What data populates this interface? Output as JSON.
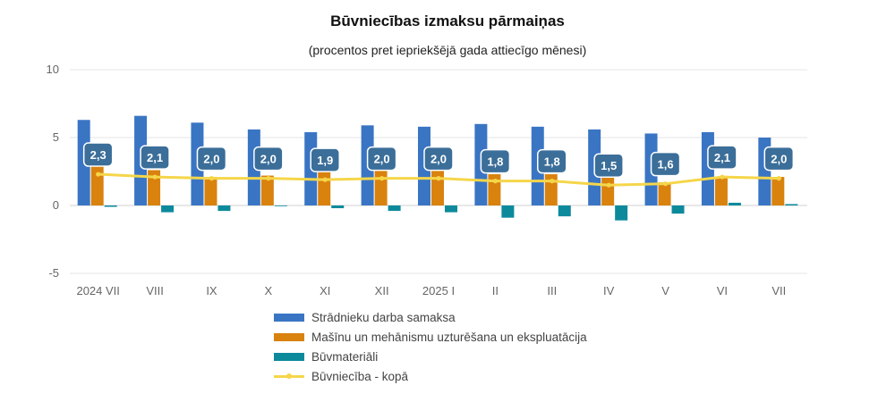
{
  "chart_data": {
    "type": "bar",
    "title": "Būvniecības izmaksu pārmaiņas",
    "subtitle": "(procentos pret iepriekšējā gada attiecīgo mēnesi)",
    "categories": [
      "2024 VII",
      "VIII",
      "IX",
      "X",
      "XI",
      "XII",
      "2025 I",
      "II",
      "III",
      "IV",
      "V",
      "VI",
      "VII"
    ],
    "ylim": [
      -5,
      10
    ],
    "yticks": [
      -5,
      0,
      5,
      10
    ],
    "grid": true,
    "legend_position": "bottom",
    "series": [
      {
        "name": "Strādnieku darba samaksa",
        "type": "bar",
        "color": "#3a75c4",
        "values": [
          6.3,
          6.6,
          6.1,
          5.6,
          5.4,
          5.9,
          5.8,
          6.0,
          5.8,
          5.6,
          5.3,
          5.4,
          5.0
        ]
      },
      {
        "name": "Mašīnu un mehānismu uzturēšana un ekspluatācija",
        "type": "bar",
        "color": "#d9820e",
        "values": [
          2.9,
          2.6,
          2.1,
          2.2,
          2.5,
          2.7,
          2.9,
          2.3,
          2.3,
          2.1,
          1.7,
          2.1,
          2.1
        ]
      },
      {
        "name": "Būvmateriāli",
        "type": "bar",
        "color": "#0c8a9c",
        "values": [
          -0.1,
          -0.5,
          -0.4,
          0.0,
          -0.2,
          -0.4,
          -0.5,
          -0.9,
          -0.8,
          -1.1,
          -0.6,
          0.2,
          0.1
        ]
      },
      {
        "name": "Būvniecība - kopā",
        "type": "line",
        "color": "#f5d64a",
        "values": [
          2.3,
          2.1,
          2.0,
          2.0,
          1.9,
          2.0,
          2.0,
          1.8,
          1.8,
          1.5,
          1.6,
          2.1,
          2.0
        ]
      }
    ],
    "data_labels": [
      "2,3",
      "2,1",
      "2,0",
      "2,0",
      "1,9",
      "2,0",
      "2,0",
      "1,8",
      "1,8",
      "1,5",
      "1,6",
      "2,1",
      "2,0"
    ],
    "ytick_labels": [
      "-5",
      "0",
      "5",
      "10"
    ]
  }
}
